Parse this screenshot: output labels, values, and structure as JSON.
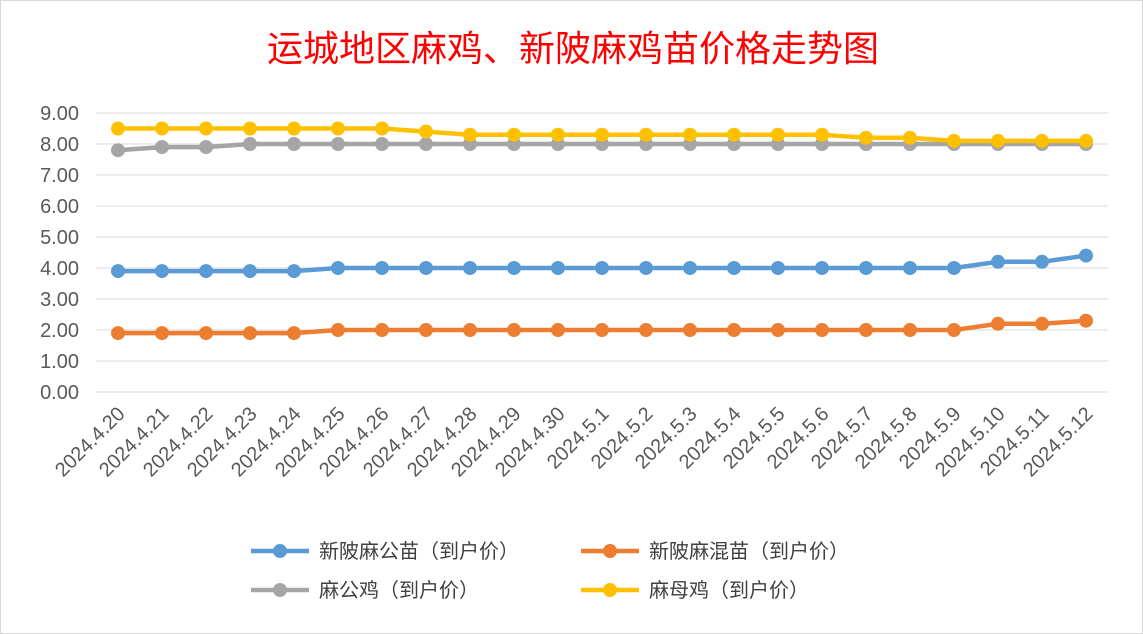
{
  "chart_data": {
    "type": "line",
    "title": "运城地区麻鸡、新陂麻鸡苗价格走势图",
    "xlabel": "",
    "ylabel": "",
    "ylim": [
      0,
      9
    ],
    "yticks": [
      "0.00",
      "1.00",
      "2.00",
      "3.00",
      "4.00",
      "5.00",
      "6.00",
      "7.00",
      "8.00",
      "9.00"
    ],
    "grid": true,
    "legend_position": "bottom",
    "categories": [
      "2024.4.20",
      "2024.4.21",
      "2024.4.22",
      "2024.4.23",
      "2024.4.24",
      "2024.4.25",
      "2024.4.26",
      "2024.4.27",
      "2024.4.28",
      "2024.4.29",
      "2024.4.30",
      "2024.5.1",
      "2024.5.2",
      "2024.5.3",
      "2024.5.4",
      "2024.5.5",
      "2024.5.6",
      "2024.5.7",
      "2024.5.8",
      "2024.5.9",
      "2024.5.10",
      "2024.5.11",
      "2024.5.12"
    ],
    "series": [
      {
        "name": "新陂麻公苗（到户价）",
        "color": "#5b9bd5",
        "values": [
          3.9,
          3.9,
          3.9,
          3.9,
          3.9,
          4.0,
          4.0,
          4.0,
          4.0,
          4.0,
          4.0,
          4.0,
          4.0,
          4.0,
          4.0,
          4.0,
          4.0,
          4.0,
          4.0,
          4.0,
          4.2,
          4.2,
          4.4
        ]
      },
      {
        "name": "新陂麻混苗（到户价）",
        "color": "#ed7d31",
        "values": [
          1.9,
          1.9,
          1.9,
          1.9,
          1.9,
          2.0,
          2.0,
          2.0,
          2.0,
          2.0,
          2.0,
          2.0,
          2.0,
          2.0,
          2.0,
          2.0,
          2.0,
          2.0,
          2.0,
          2.0,
          2.2,
          2.2,
          2.3
        ]
      },
      {
        "name": "麻公鸡（到户价）",
        "color": "#a5a5a5",
        "values": [
          7.8,
          7.9,
          7.9,
          8.0,
          8.0,
          8.0,
          8.0,
          8.0,
          8.0,
          8.0,
          8.0,
          8.0,
          8.0,
          8.0,
          8.0,
          8.0,
          8.0,
          8.0,
          8.0,
          8.0,
          8.0,
          8.0,
          8.0
        ]
      },
      {
        "name": "麻母鸡（到户价）",
        "color": "#ffc000",
        "values": [
          8.5,
          8.5,
          8.5,
          8.5,
          8.5,
          8.5,
          8.5,
          8.4,
          8.3,
          8.3,
          8.3,
          8.3,
          8.3,
          8.3,
          8.3,
          8.3,
          8.3,
          8.2,
          8.2,
          8.1,
          8.1,
          8.1,
          8.1
        ]
      }
    ]
  }
}
